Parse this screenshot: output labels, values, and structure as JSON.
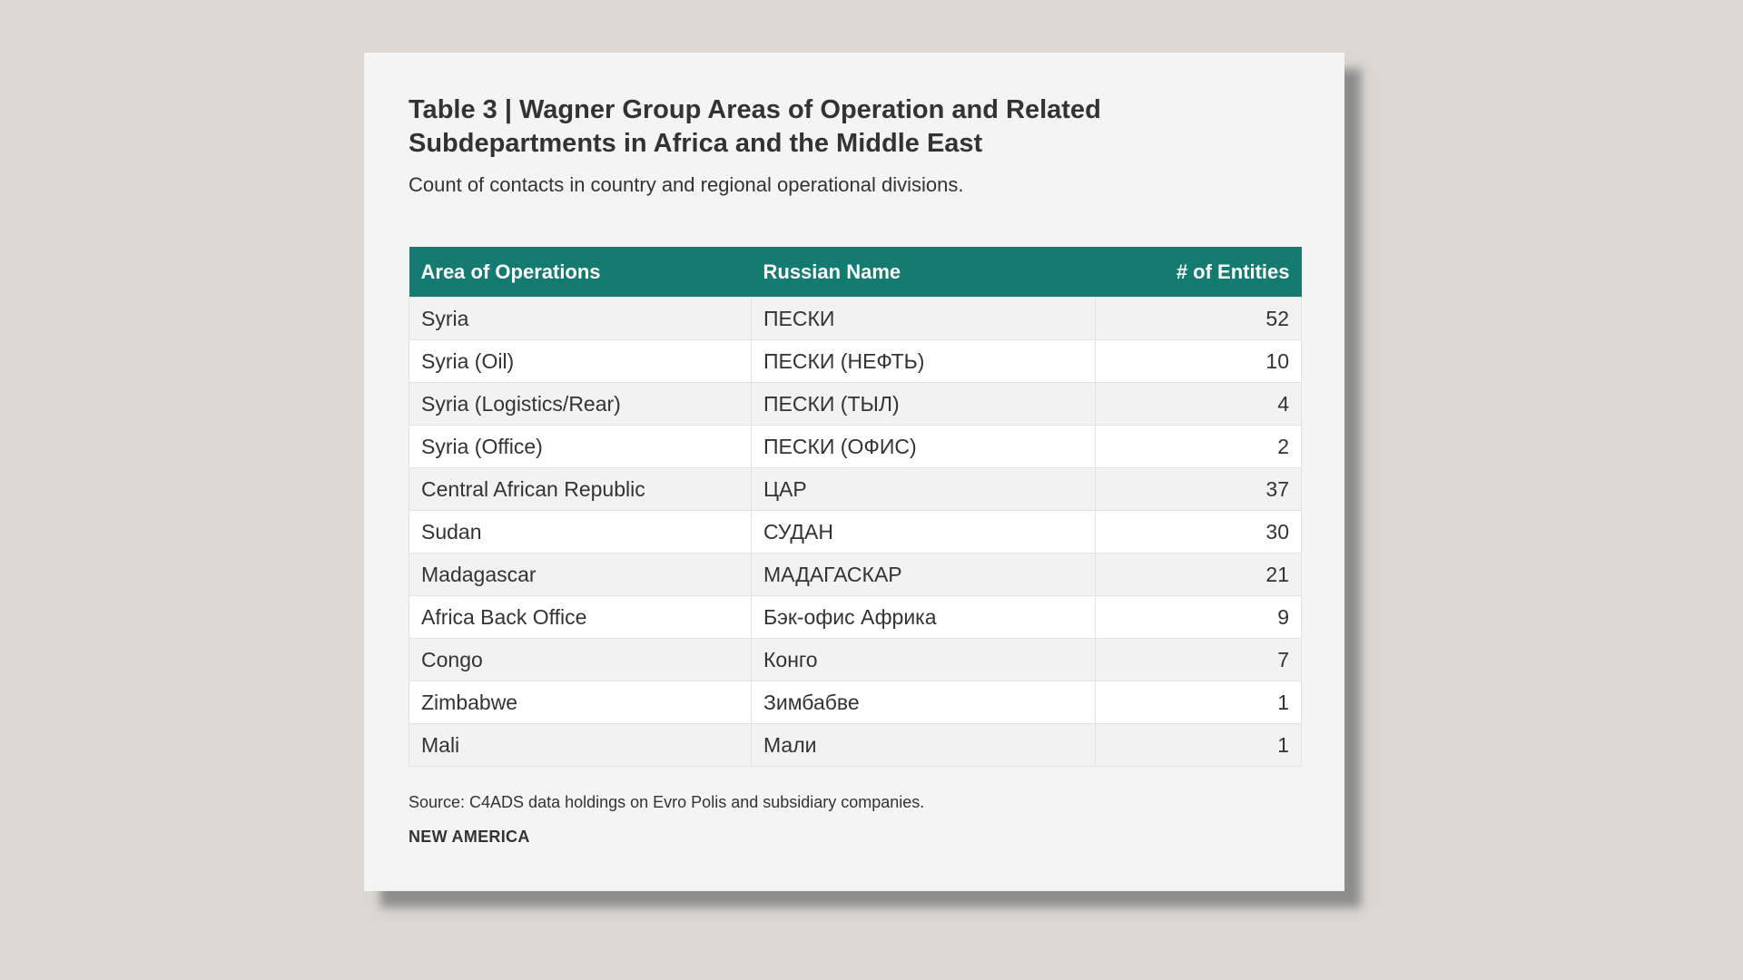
{
  "title_line1": "Table 3 | Wagner Group Areas of Operation and Related",
  "title_line2": "Subdepartments in Africa and the Middle East",
  "subtitle": "Count of contacts in country and regional operational divisions.",
  "table": {
    "headers": [
      "Area of Operations",
      "Russian Name",
      "# of Entities"
    ],
    "rows": [
      {
        "area": "Syria",
        "russian": "ПЕСКИ",
        "count": "52"
      },
      {
        "area": "Syria (Oil)",
        "russian": "ПЕСКИ (НЕФТЬ)",
        "count": "10"
      },
      {
        "area": "Syria (Logistics/Rear)",
        "russian": "ПЕСКИ (ТЫЛ)",
        "count": "4"
      },
      {
        "area": "Syria (Office)",
        "russian": "ПЕСКИ (ОФИС)",
        "count": "2"
      },
      {
        "area": "Central African Republic",
        "russian": "ЦАР",
        "count": "37"
      },
      {
        "area": "Sudan",
        "russian": "СУДАН",
        "count": "30"
      },
      {
        "area": "Madagascar",
        "russian": "МАДАГАСКАР",
        "count": "21"
      },
      {
        "area": "Africa Back Office",
        "russian": "Бэк-офис Африка",
        "count": "9"
      },
      {
        "area": "Congo",
        "russian": "Конго",
        "count": "7"
      },
      {
        "area": "Zimbabwe",
        "russian": "Зимбабве",
        "count": "1"
      },
      {
        "area": "Mali",
        "russian": "Мали",
        "count": "1"
      }
    ]
  },
  "source": "Source: C4ADS data holdings on Evro Polis and subsidiary companies.",
  "brand": "NEW AMERICA",
  "colors": {
    "header_bg": "#137b72",
    "card_bg": "#f4f4f4",
    "page_bg": "#dcd7d3"
  }
}
